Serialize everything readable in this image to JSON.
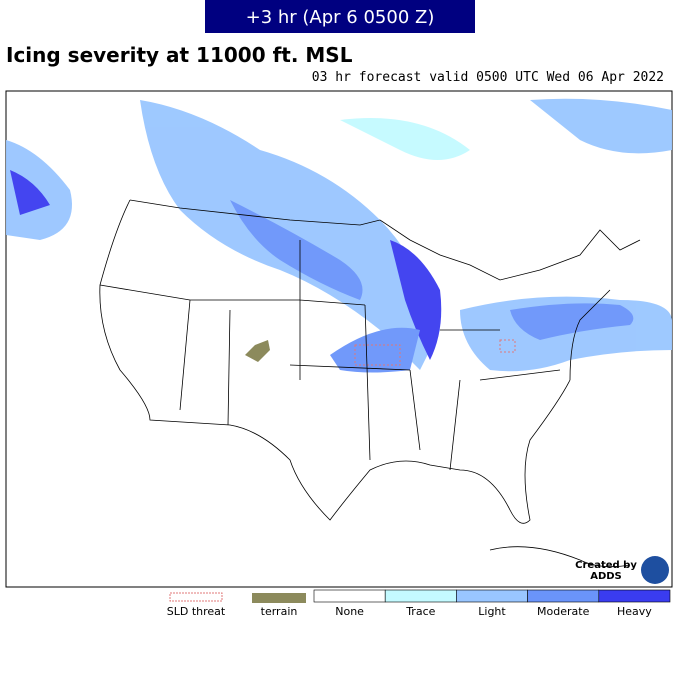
{
  "header": {
    "badge": "+3 hr (Apr 6 0500 Z)",
    "title": "Icing severity at 11000 ft. MSL",
    "subtitle": "03 hr forecast valid 0500 UTC Wed 06 Apr 2022"
  },
  "credit": {
    "line1": "Created by",
    "line2": "ADDS"
  },
  "legend": {
    "extras": [
      {
        "label": "SLD threat",
        "color": "#e07878"
      },
      {
        "label": "terrain",
        "color": "#8c8a5c"
      }
    ],
    "scale": [
      {
        "label": "None",
        "color": "#ffffff"
      },
      {
        "label": "Trace",
        "color": "#c4faff"
      },
      {
        "label": "Light",
        "color": "#99c6ff"
      },
      {
        "label": "Moderate",
        "color": "#6a94fa"
      },
      {
        "label": "Heavy",
        "color": "#3a3cf0"
      }
    ]
  }
}
